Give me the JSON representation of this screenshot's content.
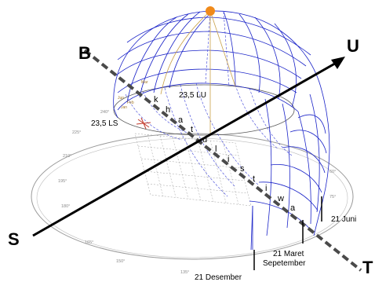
{
  "directions": {
    "north": "U",
    "south": "S",
    "east": "T",
    "west": "B"
  },
  "equator_word": [
    "k",
    "h",
    "a",
    "t",
    "u",
    "l",
    "i",
    "s",
    "t",
    "i",
    "w",
    "a"
  ],
  "labels": {
    "lat_north": "23,5 LU",
    "lat_south": "23,5 LS",
    "june": "21 Juni",
    "march": "21 Maret",
    "september": "Sepetember",
    "december": "21 Desember"
  },
  "degree_labels": [
    "240°",
    "225°",
    "210°",
    "195°",
    "180°",
    "165°",
    "150°",
    "135°",
    "60°",
    "75°"
  ],
  "month_markers": [
    "Mar",
    "Jun",
    "Feb",
    "Jan"
  ],
  "colors": {
    "dome_lines": "#1a23c8",
    "dome_dashed": "#3a40d8",
    "axis": "#000000",
    "equator_dashed": "#4a4a4a",
    "sun": "#f08a1a",
    "sun_path": "#c9a14a",
    "base_circle": "#9a9a9a",
    "grid": "#8a8a8a",
    "compass": "#c0392b"
  }
}
